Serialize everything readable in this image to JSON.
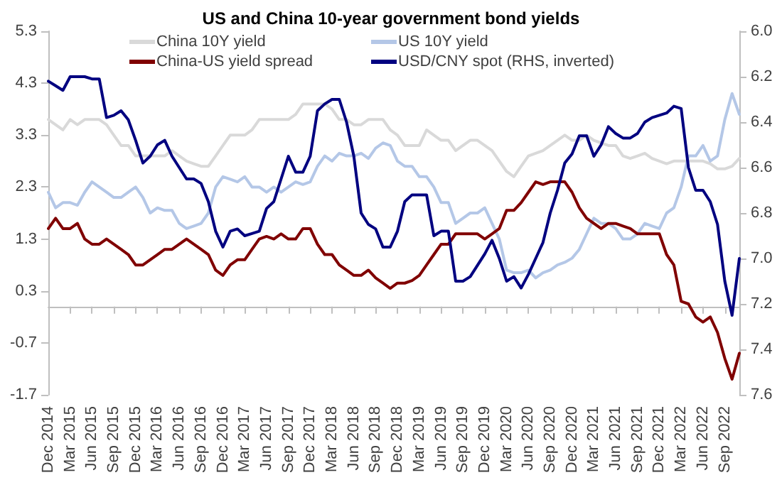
{
  "chart_data": {
    "type": "line",
    "title": "US and China 10-year government bond yields",
    "categories": [
      "Dec 2014",
      null,
      null,
      "Mar 2015",
      null,
      null,
      "Jun 2015",
      null,
      null,
      "Sep 2015",
      null,
      null,
      "Dec 2015",
      null,
      null,
      "Mar 2016",
      null,
      null,
      "Jun 2016",
      null,
      null,
      "Sep 2016",
      null,
      null,
      "Dec 2016",
      null,
      null,
      "Mar 2017",
      null,
      null,
      "Jun 2017",
      null,
      null,
      "Sep 2017",
      null,
      null,
      "Dec 2017",
      null,
      null,
      "Mar 2018",
      null,
      null,
      "Jun 2018",
      null,
      null,
      "Sep 2018",
      null,
      null,
      "Dec 2018",
      null,
      null,
      "Mar 2019",
      null,
      null,
      "Jun 2019",
      null,
      null,
      "Sep 2019",
      null,
      null,
      "Dec 2019",
      null,
      null,
      "Mar 2020",
      null,
      null,
      "Jun 2020",
      null,
      null,
      "Sep 2020",
      null,
      null,
      "Dec 2020",
      null,
      null,
      "Mar 2021",
      null,
      null,
      "Jun 2021",
      null,
      null,
      "Sep 2021",
      null,
      null,
      "Dec 2021",
      null,
      null,
      "Mar 2022",
      null,
      null,
      "Jun 2022",
      null,
      null,
      "Sep 2022",
      null,
      null
    ],
    "series": [
      {
        "name": "China 10Y yield",
        "color": "#d9d9d9",
        "values": [
          3.6,
          3.5,
          3.4,
          3.6,
          3.5,
          3.6,
          3.6,
          3.6,
          3.5,
          3.3,
          3.1,
          3.1,
          2.9,
          2.9,
          2.9,
          2.9,
          2.9,
          3.0,
          2.9,
          2.8,
          2.75,
          2.7,
          2.7,
          2.9,
          3.1,
          3.3,
          3.3,
          3.3,
          3.4,
          3.6,
          3.6,
          3.6,
          3.6,
          3.6,
          3.7,
          3.9,
          3.9,
          3.9,
          3.9,
          3.8,
          3.6,
          3.6,
          3.5,
          3.5,
          3.6,
          3.6,
          3.6,
          3.4,
          3.3,
          3.1,
          3.1,
          3.1,
          3.4,
          3.3,
          3.2,
          3.2,
          3.0,
          3.1,
          3.2,
          3.2,
          3.1,
          3.0,
          2.8,
          2.6,
          2.5,
          2.7,
          2.9,
          2.95,
          3.0,
          3.1,
          3.2,
          3.3,
          3.2,
          3.2,
          3.3,
          3.2,
          3.15,
          3.1,
          3.1,
          2.9,
          2.85,
          2.9,
          2.95,
          2.85,
          2.8,
          2.75,
          2.8,
          2.8,
          2.8,
          2.8,
          2.8,
          2.75,
          2.65,
          2.65,
          2.7,
          2.85
        ]
      },
      {
        "name": "US 10Y yield",
        "color": "#b4c7e7",
        "values": [
          2.2,
          1.9,
          2.0,
          2.0,
          1.95,
          2.2,
          2.4,
          2.3,
          2.2,
          2.1,
          2.1,
          2.2,
          2.3,
          2.1,
          1.8,
          1.9,
          1.85,
          1.85,
          1.6,
          1.5,
          1.55,
          1.6,
          1.8,
          2.3,
          2.5,
          2.45,
          2.4,
          2.5,
          2.3,
          2.3,
          2.2,
          2.3,
          2.2,
          2.3,
          2.4,
          2.35,
          2.4,
          2.7,
          2.9,
          2.8,
          2.95,
          2.9,
          2.9,
          2.95,
          2.85,
          3.05,
          3.15,
          3.1,
          2.8,
          2.7,
          2.7,
          2.5,
          2.5,
          2.3,
          2.0,
          2.0,
          1.6,
          1.7,
          1.8,
          1.8,
          1.9,
          1.6,
          1.3,
          0.7,
          0.65,
          0.65,
          0.7,
          0.55,
          0.65,
          0.7,
          0.8,
          0.85,
          0.93,
          1.1,
          1.4,
          1.7,
          1.6,
          1.6,
          1.5,
          1.3,
          1.3,
          1.4,
          1.6,
          1.55,
          1.5,
          1.8,
          1.9,
          2.3,
          2.9,
          2.9,
          3.1,
          2.8,
          2.9,
          3.6,
          4.1,
          3.7
        ]
      },
      {
        "name": "China-US yield spread",
        "color": "#800000",
        "values": [
          1.5,
          1.7,
          1.5,
          1.5,
          1.6,
          1.3,
          1.2,
          1.2,
          1.3,
          1.2,
          1.1,
          1.0,
          0.8,
          0.8,
          0.9,
          1.0,
          1.1,
          1.1,
          1.2,
          1.3,
          1.2,
          1.1,
          1.0,
          0.7,
          0.6,
          0.8,
          0.9,
          0.9,
          1.1,
          1.3,
          1.35,
          1.3,
          1.4,
          1.3,
          1.3,
          1.5,
          1.5,
          1.2,
          1.0,
          1.0,
          0.8,
          0.7,
          0.6,
          0.6,
          0.7,
          0.55,
          0.45,
          0.35,
          0.45,
          0.45,
          0.5,
          0.6,
          0.8,
          1.0,
          1.2,
          1.2,
          1.4,
          1.4,
          1.4,
          1.4,
          1.3,
          1.4,
          1.5,
          1.85,
          1.85,
          2.0,
          2.2,
          2.4,
          2.35,
          2.4,
          2.4,
          2.4,
          2.2,
          1.9,
          1.7,
          1.6,
          1.5,
          1.6,
          1.6,
          1.55,
          1.5,
          1.4,
          1.4,
          1.4,
          1.4,
          1.0,
          0.8,
          0.1,
          0.05,
          -0.2,
          -0.3,
          -0.2,
          -0.5,
          -1.0,
          -1.4,
          -0.9
        ]
      },
      {
        "name": "USD/CNY spot (RHS, inverted)",
        "color": "#000080",
        "axis": "y2",
        "values": [
          6.22,
          6.24,
          6.26,
          6.2,
          6.2,
          6.2,
          6.21,
          6.21,
          6.38,
          6.37,
          6.35,
          6.39,
          6.48,
          6.58,
          6.55,
          6.5,
          6.48,
          6.55,
          6.6,
          6.65,
          6.65,
          6.67,
          6.75,
          6.88,
          6.95,
          6.88,
          6.87,
          6.9,
          6.89,
          6.88,
          6.78,
          6.75,
          6.65,
          6.55,
          6.62,
          6.62,
          6.55,
          6.35,
          6.32,
          6.3,
          6.3,
          6.4,
          6.55,
          6.8,
          6.85,
          6.87,
          6.95,
          6.95,
          6.88,
          6.75,
          6.72,
          6.72,
          6.72,
          6.9,
          6.88,
          6.88,
          7.1,
          7.1,
          7.08,
          7.03,
          6.98,
          6.92,
          7.0,
          7.1,
          7.08,
          7.13,
          7.07,
          7.0,
          6.93,
          6.8,
          6.7,
          6.58,
          6.54,
          6.46,
          6.46,
          6.55,
          6.5,
          6.42,
          6.45,
          6.47,
          6.47,
          6.45,
          6.4,
          6.38,
          6.37,
          6.36,
          6.33,
          6.34,
          6.6,
          6.7,
          6.7,
          6.75,
          6.85,
          7.1,
          7.25,
          7.0
        ]
      }
    ],
    "ylim": [
      -1.7,
      5.3
    ],
    "yticks": [
      -1.7,
      -0.7,
      0.3,
      1.3,
      2.3,
      3.3,
      4.3,
      5.3
    ],
    "y2lim": [
      7.6,
      6.0
    ],
    "y2ticks": [
      {
        "value": 6,
        "label": "6.0"
      },
      6.2,
      6.4,
      6.6,
      6.8,
      {
        "value": 7,
        "label": "7.0"
      },
      7.2,
      7.4,
      7.6
    ],
    "legend": "top",
    "grid": false,
    "marker": "none",
    "line_style": "solid"
  }
}
